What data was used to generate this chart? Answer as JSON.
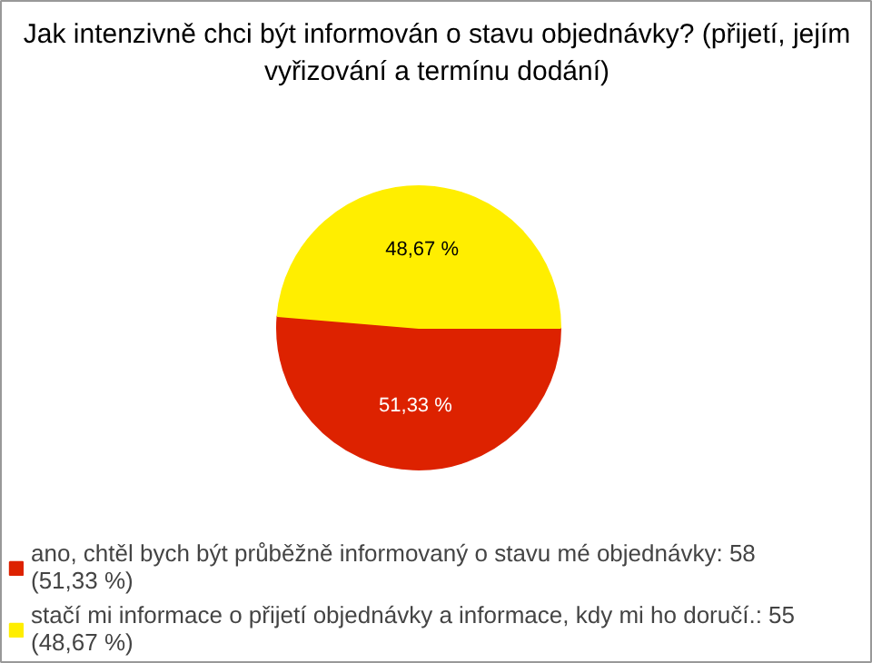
{
  "chart_data": {
    "type": "pie",
    "title": "Jak intenzivně chci být informován o stavu objednávky? (přijetí, jejím vyřizování a termínu dodání)",
    "categories": [
      "ano, chtěl bych být průběžně informovaný o stavu mé objednávky: 58 (51,33 %)",
      "stačí mi informace o přijetí objednávky a informace, kdy mi ho doručí.: 55 (48,67 %)"
    ],
    "values": [
      51.33,
      48.67
    ],
    "value_labels": [
      "51,33 %",
      "48,67 %"
    ],
    "colors": [
      "#dd2200",
      "#ffee00"
    ],
    "legend": "bottom"
  }
}
